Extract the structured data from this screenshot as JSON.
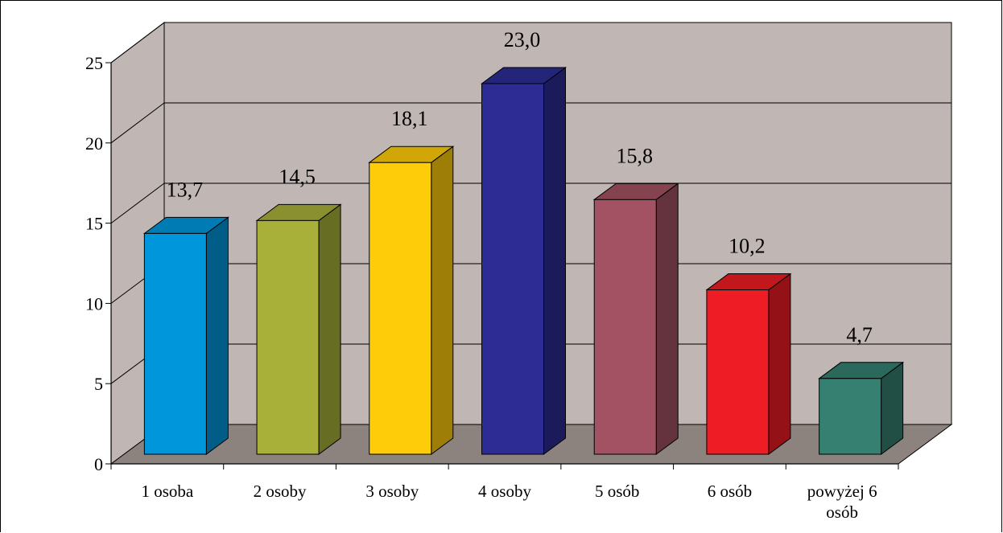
{
  "chart_data": {
    "type": "bar",
    "categories": [
      "1 osoba",
      "2 osoby",
      "3 osoby",
      "4 osoby",
      "5 osób",
      "6 osób",
      "powyżej 6 osób"
    ],
    "category_label_lines": [
      [
        "1 osoba"
      ],
      [
        "2 osoby"
      ],
      [
        "3 osoby"
      ],
      [
        "4 osoby"
      ],
      [
        "5 osób"
      ],
      [
        "6 osób"
      ],
      [
        "powyżej 6",
        "osób"
      ]
    ],
    "values": [
      13.7,
      14.5,
      18.1,
      23.0,
      15.8,
      10.2,
      4.7
    ],
    "data_labels": [
      "13,7",
      "14,5",
      "18,1",
      "23,0",
      "15,8",
      "10,2",
      "4,7"
    ],
    "yticks": [
      0,
      5,
      10,
      15,
      20,
      25
    ],
    "ylim": [
      0,
      25
    ],
    "grid": true,
    "legend": false,
    "style": "3d-column",
    "colors": {
      "bars": [
        "#0096DC",
        "#A8B03A",
        "#FFCC0A",
        "#2C2C94",
        "#A25262",
        "#EE1C25",
        "#358070"
      ],
      "wall": "#C0B6B4",
      "floor": "#8C827E"
    }
  }
}
